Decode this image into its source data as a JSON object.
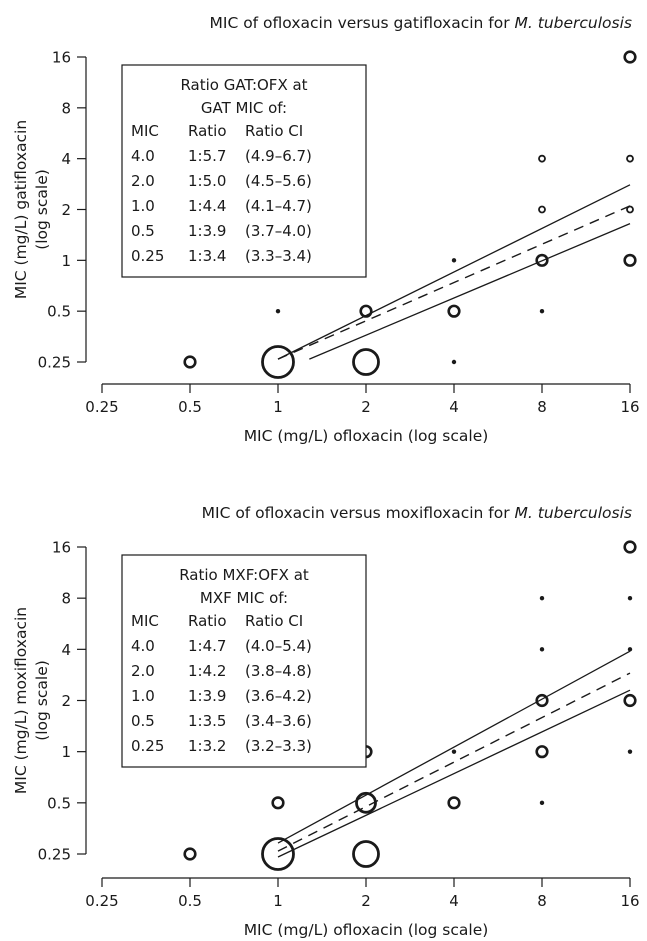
{
  "chart_data": [
    {
      "type": "scatter",
      "title_main": "MIC of ofloxacin versus gatifloxacin for ",
      "title_italic": "M. tuberculosis",
      "xlabel": "MIC (mg/L) ofloxacin (log scale)",
      "ylabel_line1": "MIC (mg/L) gatifloxacin",
      "ylabel_line2": "(log scale)",
      "x_scale": "log2",
      "y_scale": "log2",
      "xlim": [
        0.25,
        16
      ],
      "ylim": [
        0.25,
        16
      ],
      "x_ticks": [
        0.25,
        0.5,
        1,
        2,
        4,
        8,
        16
      ],
      "y_ticks": [
        0.25,
        0.5,
        1,
        2,
        4,
        8,
        16
      ],
      "x_tick_labels": [
        "0.25",
        "0.5",
        "1",
        "2",
        "4",
        "8",
        "16"
      ],
      "y_tick_labels": [
        "0.25",
        "0.5",
        "1",
        "2",
        "4",
        "8",
        "16"
      ],
      "points": [
        {
          "x": 0.5,
          "y": 0.25,
          "size": "small"
        },
        {
          "x": 1,
          "y": 0.25,
          "size": "xlarge"
        },
        {
          "x": 2,
          "y": 0.25,
          "size": "large"
        },
        {
          "x": 4,
          "y": 0.25,
          "size": "dot"
        },
        {
          "x": 1,
          "y": 0.5,
          "size": "dot"
        },
        {
          "x": 2,
          "y": 0.5,
          "size": "small"
        },
        {
          "x": 4,
          "y": 0.5,
          "size": "small"
        },
        {
          "x": 8,
          "y": 0.5,
          "size": "dot"
        },
        {
          "x": 4,
          "y": 1,
          "size": "dot"
        },
        {
          "x": 8,
          "y": 1,
          "size": "small"
        },
        {
          "x": 16,
          "y": 1,
          "size": "small"
        },
        {
          "x": 8,
          "y": 2,
          "size": "tiny"
        },
        {
          "x": 16,
          "y": 2,
          "size": "tiny"
        },
        {
          "x": 8,
          "y": 4,
          "size": "tiny"
        },
        {
          "x": 16,
          "y": 4,
          "size": "tiny"
        },
        {
          "x": 16,
          "y": 16,
          "size": "small"
        }
      ],
      "regression": {
        "x": [
          1,
          16
        ],
        "y": [
          0.26,
          2.1
        ]
      },
      "ci_upper": {
        "x": [
          1,
          16
        ],
        "y": [
          0.26,
          2.8
        ]
      },
      "ci_lower": {
        "x": [
          1.28,
          16
        ],
        "y": [
          0.26,
          1.65
        ]
      },
      "box": {
        "title_line1": "Ratio GAT:OFX at",
        "title_line2": "GAT MIC of:",
        "headers": [
          "MIC",
          "Ratio",
          "Ratio CI"
        ],
        "rows": [
          [
            "4.0",
            "1:5.7",
            "(4.9–6.7)"
          ],
          [
            "2.0",
            "1:5.0",
            "(4.5–5.6)"
          ],
          [
            "1.0",
            "1:4.4",
            "(4.1–4.7)"
          ],
          [
            "0.5",
            "1:3.9",
            "(3.7–4.0)"
          ],
          [
            "0.25",
            "1:3.4",
            "(3.3–3.4)"
          ]
        ]
      }
    },
    {
      "type": "scatter",
      "title_main": "MIC of ofloxacin versus moxifloxacin for ",
      "title_italic": "M. tuberculosis",
      "xlabel": "MIC (mg/L) ofloxacin (log scale)",
      "ylabel_line1": "MIC (mg/L) moxifloxacin",
      "ylabel_line2": "(log scale)",
      "x_scale": "log2",
      "y_scale": "log2",
      "xlim": [
        0.25,
        16
      ],
      "ylim": [
        0.25,
        16
      ],
      "x_ticks": [
        0.25,
        0.5,
        1,
        2,
        4,
        8,
        16
      ],
      "y_ticks": [
        0.25,
        0.5,
        1,
        2,
        4,
        8,
        16
      ],
      "x_tick_labels": [
        "0.25",
        "0.5",
        "1",
        "2",
        "4",
        "8",
        "16"
      ],
      "y_tick_labels": [
        "0.25",
        "0.5",
        "1",
        "2",
        "4",
        "8",
        "16"
      ],
      "points": [
        {
          "x": 0.5,
          "y": 0.25,
          "size": "small"
        },
        {
          "x": 1,
          "y": 0.25,
          "size": "xlarge"
        },
        {
          "x": 2,
          "y": 0.25,
          "size": "large"
        },
        {
          "x": 1,
          "y": 0.5,
          "size": "small"
        },
        {
          "x": 2,
          "y": 0.5,
          "size": "medium"
        },
        {
          "x": 4,
          "y": 0.5,
          "size": "small"
        },
        {
          "x": 8,
          "y": 0.5,
          "size": "dot"
        },
        {
          "x": 2,
          "y": 1,
          "size": "small"
        },
        {
          "x": 4,
          "y": 1,
          "size": "dot"
        },
        {
          "x": 8,
          "y": 1,
          "size": "small"
        },
        {
          "x": 16,
          "y": 1,
          "size": "dot"
        },
        {
          "x": 8,
          "y": 2,
          "size": "small"
        },
        {
          "x": 16,
          "y": 2,
          "size": "small"
        },
        {
          "x": 8,
          "y": 4,
          "size": "dot"
        },
        {
          "x": 16,
          "y": 4,
          "size": "dot"
        },
        {
          "x": 8,
          "y": 8,
          "size": "dot"
        },
        {
          "x": 16,
          "y": 8,
          "size": "dot"
        },
        {
          "x": 16,
          "y": 16,
          "size": "small"
        }
      ],
      "regression": {
        "x": [
          1,
          16
        ],
        "y": [
          0.26,
          2.9
        ]
      },
      "ci_upper": {
        "x": [
          1,
          16
        ],
        "y": [
          0.29,
          3.9
        ]
      },
      "ci_lower": {
        "x": [
          1,
          16
        ],
        "y": [
          0.24,
          2.3
        ]
      },
      "box": {
        "title_line1": "Ratio MXF:OFX at",
        "title_line2": "MXF MIC of:",
        "headers": [
          "MIC",
          "Ratio",
          "Ratio CI"
        ],
        "rows": [
          [
            "4.0",
            "1:4.7",
            "(4.0–5.4)"
          ],
          [
            "2.0",
            "1:4.2",
            "(3.8–4.8)"
          ],
          [
            "1.0",
            "1:3.9",
            "(3.6–4.2)"
          ],
          [
            "0.5",
            "1:3.5",
            "(3.4–3.6)"
          ],
          [
            "0.25",
            "1:3.2",
            "(3.2–3.3)"
          ]
        ]
      }
    }
  ]
}
